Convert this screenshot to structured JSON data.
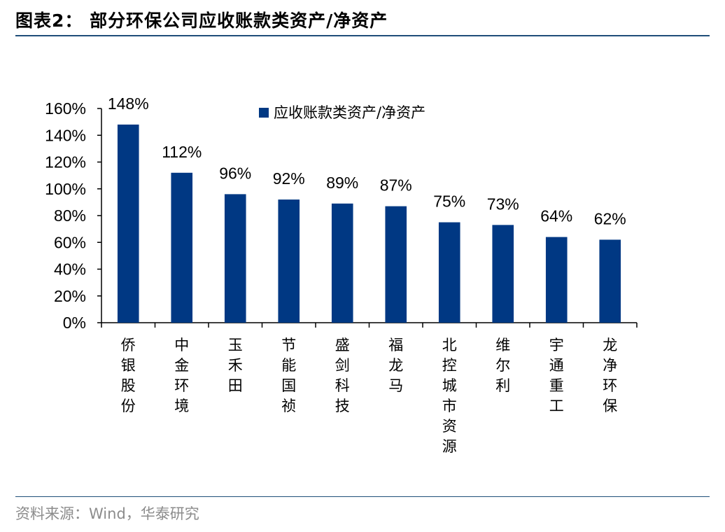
{
  "header": {
    "title": "图表2： 部分环保公司应收账款类资产/净资产"
  },
  "footer": {
    "source": "资料来源：Wind，华泰研究"
  },
  "chart_data": {
    "type": "bar",
    "categories": [
      "侨银股份",
      "中金环境",
      "玉禾田",
      "节能国祯",
      "盛剑科技",
      "福龙马",
      "北控城市资源",
      "维尔利",
      "宇通重工",
      "龙净环保"
    ],
    "series": [
      {
        "name": "应收账款类资产/净资产",
        "values": [
          148,
          112,
          96,
          92,
          89,
          87,
          75,
          73,
          64,
          62
        ],
        "labels": [
          "148%",
          "112%",
          "96%",
          "92%",
          "89%",
          "87%",
          "75%",
          "73%",
          "64%",
          "62%"
        ]
      }
    ],
    "yticks": [
      "0%",
      "20%",
      "40%",
      "60%",
      "80%",
      "100%",
      "120%",
      "140%",
      "160%"
    ],
    "ylim": [
      0,
      160
    ],
    "title": "",
    "xlabel": "",
    "ylabel": "",
    "grid": false,
    "legend": "top-center",
    "colors": {
      "bar": "#003883",
      "axis": "#000000"
    }
  }
}
